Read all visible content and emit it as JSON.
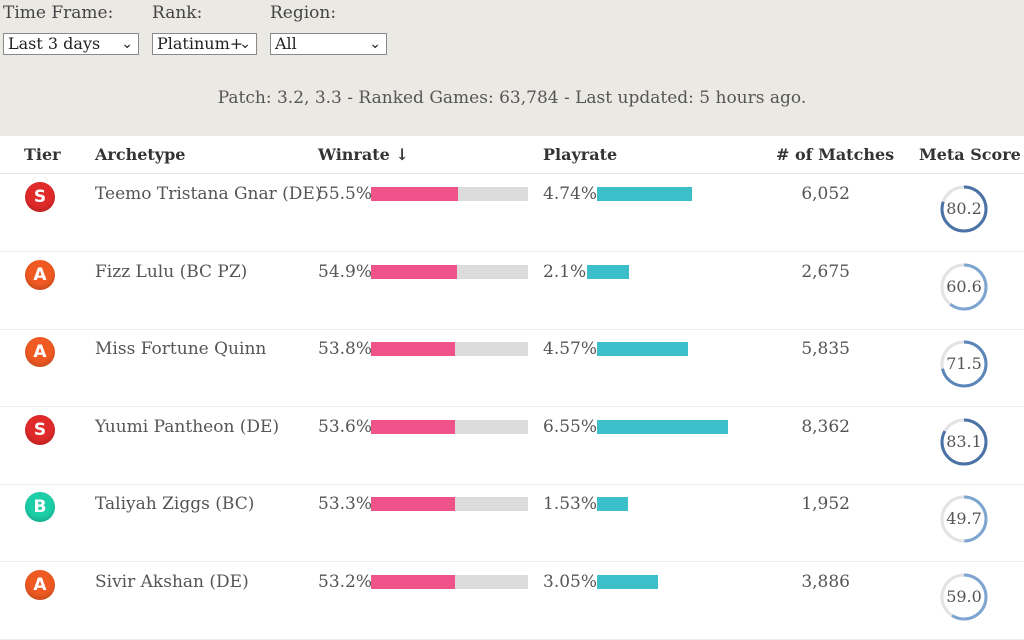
{
  "filters": {
    "time_frame": {
      "label": "Time Frame:",
      "value": "Last 3 days"
    },
    "rank": {
      "label": "Rank:",
      "value": "Platinum+"
    },
    "region": {
      "label": "Region:",
      "value": "All"
    }
  },
  "patch_info": "Patch: 3.2, 3.3 - Ranked Games: 63,784 - Last updated: 5 hours ago.",
  "headers": {
    "tier": "Tier",
    "archetype": "Archetype",
    "winrate": "Winrate ↓",
    "playrate": "Playrate",
    "matches": "# of Matches",
    "meta_score": "Meta Score"
  },
  "tier_colors": {
    "S": "#e02a2a",
    "A": "#ef5a22",
    "B": "#1ccfa8"
  },
  "rows": [
    {
      "tier": "S",
      "archetype": "Teemo Tristana Gnar (DE)",
      "winrate": "55.5%",
      "winrate_value": 55.5,
      "playrate": "4.74%",
      "playrate_value": 4.74,
      "matches": "6,052",
      "meta_score": "80.2",
      "meta_value": 80.2
    },
    {
      "tier": "A",
      "archetype": "Fizz Lulu (BC PZ)",
      "winrate": "54.9%",
      "winrate_value": 54.9,
      "playrate": "2.1%",
      "playrate_value": 2.1,
      "matches": "2,675",
      "meta_score": "60.6",
      "meta_value": 60.6
    },
    {
      "tier": "A",
      "archetype": "Miss Fortune Quinn",
      "winrate": "53.8%",
      "winrate_value": 53.8,
      "playrate": "4.57%",
      "playrate_value": 4.57,
      "matches": "5,835",
      "meta_score": "71.5",
      "meta_value": 71.5
    },
    {
      "tier": "S",
      "archetype": "Yuumi Pantheon (DE)",
      "winrate": "53.6%",
      "winrate_value": 53.6,
      "playrate": "6.55%",
      "playrate_value": 6.55,
      "matches": "8,362",
      "meta_score": "83.1",
      "meta_value": 83.1
    },
    {
      "tier": "B",
      "archetype": "Taliyah Ziggs (BC)",
      "winrate": "53.3%",
      "winrate_value": 53.3,
      "playrate": "1.53%",
      "playrate_value": 1.53,
      "matches": "1,952",
      "meta_score": "49.7",
      "meta_value": 49.7
    },
    {
      "tier": "A",
      "archetype": "Sivir Akshan (DE)",
      "winrate": "53.2%",
      "winrate_value": 53.2,
      "playrate": "3.05%",
      "playrate_value": 3.05,
      "matches": "3,886",
      "meta_score": "59.0",
      "meta_value": 59.0
    }
  ]
}
